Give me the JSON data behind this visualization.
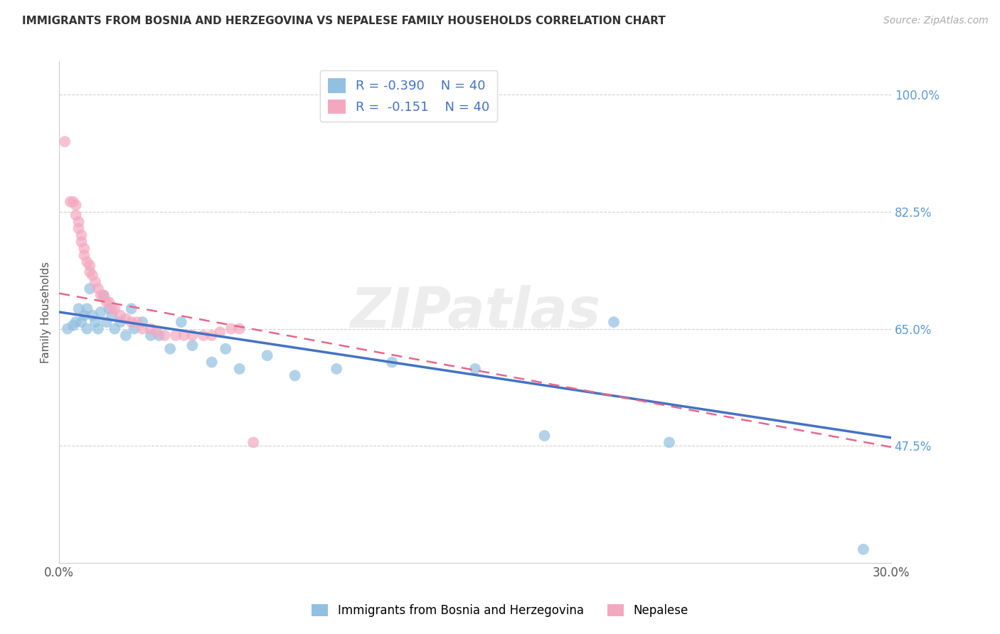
{
  "title": "IMMIGRANTS FROM BOSNIA AND HERZEGOVINA VS NEPALESE FAMILY HOUSEHOLDS CORRELATION CHART",
  "source": "Source: ZipAtlas.com",
  "ylabel": "Family Households",
  "xlabel": "",
  "xlim": [
    0.0,
    0.3
  ],
  "ylim": [
    0.3,
    1.05
  ],
  "xticks": [
    0.0,
    0.05,
    0.1,
    0.15,
    0.2,
    0.25,
    0.3
  ],
  "xticklabels": [
    "0.0%",
    "",
    "",
    "",
    "",
    "",
    "30.0%"
  ],
  "ytick_positions": [
    0.475,
    0.65,
    0.825,
    1.0
  ],
  "ytick_labels": [
    "47.5%",
    "65.0%",
    "82.5%",
    "100.0%"
  ],
  "blue_color": "#92c0e0",
  "pink_color": "#f4a8c0",
  "blue_line_color": "#4472c4",
  "pink_line_color": "#e8668a",
  "legend_label1": "Immigrants from Bosnia and Herzegovina",
  "legend_label2": "Nepalese",
  "blue_x": [
    0.003,
    0.005,
    0.006,
    0.007,
    0.008,
    0.009,
    0.01,
    0.01,
    0.011,
    0.012,
    0.013,
    0.014,
    0.015,
    0.016,
    0.017,
    0.018,
    0.019,
    0.02,
    0.022,
    0.024,
    0.026,
    0.027,
    0.03,
    0.033,
    0.036,
    0.04,
    0.044,
    0.048,
    0.055,
    0.06,
    0.065,
    0.075,
    0.085,
    0.1,
    0.12,
    0.15,
    0.175,
    0.2,
    0.22,
    0.29
  ],
  "blue_y": [
    0.65,
    0.655,
    0.66,
    0.68,
    0.66,
    0.67,
    0.68,
    0.65,
    0.71,
    0.67,
    0.66,
    0.65,
    0.675,
    0.7,
    0.66,
    0.68,
    0.67,
    0.65,
    0.66,
    0.64,
    0.68,
    0.65,
    0.66,
    0.64,
    0.64,
    0.62,
    0.66,
    0.625,
    0.6,
    0.62,
    0.59,
    0.61,
    0.58,
    0.59,
    0.6,
    0.59,
    0.49,
    0.66,
    0.48,
    0.32
  ],
  "pink_x": [
    0.002,
    0.004,
    0.005,
    0.006,
    0.006,
    0.007,
    0.007,
    0.008,
    0.008,
    0.009,
    0.009,
    0.01,
    0.011,
    0.011,
    0.012,
    0.013,
    0.014,
    0.015,
    0.016,
    0.017,
    0.018,
    0.019,
    0.02,
    0.022,
    0.024,
    0.026,
    0.028,
    0.03,
    0.033,
    0.035,
    0.038,
    0.042,
    0.045,
    0.048,
    0.052,
    0.055,
    0.058,
    0.062,
    0.065,
    0.07
  ],
  "pink_y": [
    0.93,
    0.84,
    0.84,
    0.835,
    0.82,
    0.81,
    0.8,
    0.79,
    0.78,
    0.77,
    0.76,
    0.75,
    0.745,
    0.735,
    0.73,
    0.72,
    0.71,
    0.7,
    0.7,
    0.69,
    0.69,
    0.68,
    0.68,
    0.67,
    0.665,
    0.66,
    0.66,
    0.65,
    0.65,
    0.645,
    0.64,
    0.64,
    0.64,
    0.64,
    0.64,
    0.64,
    0.645,
    0.65,
    0.65,
    0.48
  ],
  "blue_trendline_x": [
    0.0,
    0.3
  ],
  "blue_trendline_y": [
    0.675,
    0.487
  ],
  "pink_trendline_x": [
    0.0,
    0.3
  ],
  "pink_trendline_y": [
    0.703,
    0.473
  ],
  "watermark": "ZIPatlas",
  "grid_color": "#cccccc",
  "background": "#ffffff",
  "title_fontsize": 11,
  "tick_fontsize": 12,
  "source_color": "#aaaaaa",
  "ytick_color": "#5b9bd5"
}
